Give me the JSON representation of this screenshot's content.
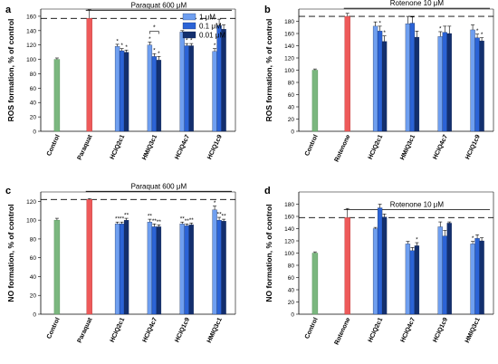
{
  "colors": {
    "control": "#7bb77f",
    "treatment": "#ee5a5a",
    "series": [
      "#6f9ff0",
      "#2b63d6",
      "#132f6e"
    ],
    "axis": "#000000",
    "ref_line": "#000000"
  },
  "legend": {
    "items": [
      "1 μM",
      "0.1 μM",
      "0.01 μM"
    ]
  },
  "chart_data": [
    {
      "panel": "a",
      "type": "bar",
      "ylabel": "ROS formation, % of control",
      "ylim": [
        0,
        170
      ],
      "yticks": [
        0,
        20,
        40,
        60,
        80,
        100,
        120,
        140,
        160
      ],
      "treatment_label": "Paraquat 600 μM",
      "reference_line": 157,
      "control": {
        "label": "Control",
        "value": 100,
        "err": 2
      },
      "treatment": {
        "label": "Paraquat",
        "value": 157,
        "err": 12
      },
      "groups": [
        {
          "label": "HCIQ2c1",
          "values": [
            118,
            112,
            110
          ],
          "errs": [
            3,
            3,
            3
          ],
          "marks": [
            "*",
            "*",
            "*"
          ]
        },
        {
          "label": "HMIQ3c1",
          "values": [
            120,
            104,
            99
          ],
          "errs": [
            4,
            4,
            5
          ],
          "marks": [
            "*",
            "*",
            "*"
          ]
        },
        {
          "label": "HCIQ4c7",
          "values": [
            138,
            119,
            119
          ],
          "errs": [
            2,
            3,
            3
          ],
          "marks": [
            "",
            "*",
            "*"
          ]
        },
        {
          "label": "HCIQ1c9",
          "values": [
            111,
            147,
            142
          ],
          "errs": [
            4,
            9,
            6
          ],
          "marks": [
            "*",
            "",
            ""
          ]
        }
      ],
      "bracket": {
        "group": 1,
        "from": 0,
        "to": 2,
        "mark": "*"
      },
      "show_legend": true
    },
    {
      "panel": "b",
      "type": "bar",
      "ylabel": "ROS formation, % of control",
      "ylim": [
        0,
        200
      ],
      "yticks": [
        0,
        20,
        40,
        60,
        80,
        100,
        120,
        140,
        160,
        180
      ],
      "treatment_label": "Rotenone 10 μM",
      "reference_line": 188,
      "control": {
        "label": "Control",
        "value": 100,
        "err": 2
      },
      "treatment": {
        "label": "Rotenone",
        "value": 188,
        "err": 5
      },
      "groups": [
        {
          "label": "HCIQ2c1",
          "values": [
            172,
            164,
            147
          ],
          "errs": [
            7,
            8,
            9
          ],
          "marks": [
            "",
            "*",
            "*"
          ]
        },
        {
          "label": "HMIQ3c1",
          "values": [
            176,
            177,
            154
          ],
          "errs": [
            12,
            10,
            10
          ],
          "marks": [
            "",
            "",
            ""
          ]
        },
        {
          "label": "HCIQ4c7",
          "values": [
            155,
            162,
            160
          ],
          "errs": [
            8,
            10,
            12
          ],
          "marks": [
            "*",
            "",
            ""
          ]
        },
        {
          "label": "HCIQ1c9",
          "values": [
            166,
            153,
            148
          ],
          "errs": [
            8,
            6,
            5
          ],
          "marks": [
            "",
            "*",
            "*"
          ]
        }
      ],
      "show_legend": false
    },
    {
      "panel": "c",
      "type": "bar",
      "ylabel": "NO formation, % of control",
      "ylim": [
        0,
        130
      ],
      "yticks": [
        0,
        20,
        40,
        60,
        80,
        100,
        120
      ],
      "treatment_label": "Paraquat 600 μM",
      "reference_line": 122,
      "control": {
        "label": "Control",
        "value": 100,
        "err": 2
      },
      "treatment": {
        "label": "Paraquat",
        "value": 122,
        "err": 1
      },
      "groups": [
        {
          "label": "HCIQ2c1",
          "values": [
            96,
            96,
            100
          ],
          "errs": [
            2,
            2,
            2
          ],
          "marks": [
            "**",
            "**",
            "**"
          ]
        },
        {
          "label": "HCIQ4c7",
          "values": [
            98,
            93,
            93
          ],
          "errs": [
            3,
            3,
            2
          ],
          "marks": [
            "**",
            "**",
            "**"
          ]
        },
        {
          "label": "HCIQ1c9",
          "values": [
            96,
            94,
            95
          ],
          "errs": [
            2,
            2,
            2
          ],
          "marks": [
            "**",
            "**",
            "**"
          ]
        },
        {
          "label": "HMIQ3c1",
          "values": [
            111,
            100,
            99
          ],
          "errs": [
            4,
            3,
            2
          ],
          "marks": [
            "*",
            "**",
            "**"
          ]
        }
      ],
      "show_legend": false
    },
    {
      "panel": "d",
      "type": "bar",
      "ylabel": "NO formation, % of control",
      "ylim": [
        0,
        200
      ],
      "yticks": [
        0,
        20,
        40,
        60,
        80,
        100,
        120,
        140,
        160,
        180
      ],
      "treatment_label": "Rotenone 10 μM",
      "reference_line": 158,
      "control": {
        "label": "Control",
        "value": 100,
        "err": 2
      },
      "treatment": {
        "label": "Rotenone",
        "value": 158,
        "err": 15
      },
      "groups": [
        {
          "label": "HCIQ2c1",
          "values": [
            140,
            174,
            159
          ],
          "errs": [
            2,
            6,
            5
          ],
          "marks": [
            "",
            "",
            ""
          ]
        },
        {
          "label": "HCIQ4c7",
          "values": [
            115,
            104,
            112
          ],
          "errs": [
            4,
            5,
            5
          ],
          "marks": [
            "",
            "",
            "*"
          ]
        },
        {
          "label": "HCIQ1c9",
          "values": [
            143,
            128,
            149
          ],
          "errs": [
            8,
            9,
            2
          ],
          "marks": [
            "",
            "",
            ""
          ]
        },
        {
          "label": "HMIQ3c1",
          "values": [
            115,
            124,
            120
          ],
          "errs": [
            4,
            6,
            5
          ],
          "marks": [
            "*",
            "",
            ""
          ]
        }
      ],
      "show_legend": false
    }
  ]
}
